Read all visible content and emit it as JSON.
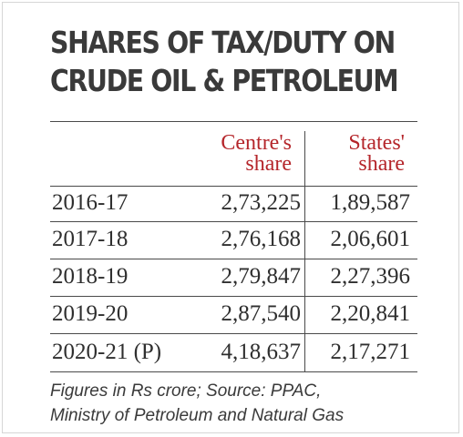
{
  "chart_data": {
    "type": "table",
    "title_lines": [
      "SHARES OF TAX/DUTY ON",
      "CRUDE OIL & PETROLEUM"
    ],
    "columns": [
      {
        "lines": [
          "Centre's",
          "share"
        ]
      },
      {
        "lines": [
          "States'",
          "share"
        ]
      }
    ],
    "rows": [
      {
        "year": "2016-17",
        "centre": "2,73,225",
        "states": "1,89,587"
      },
      {
        "year": "2017-18",
        "centre": "2,76,168",
        "states": "2,06,601"
      },
      {
        "year": "2018-19",
        "centre": "2,79,847",
        "states": "2,27,396"
      },
      {
        "year": "2019-20",
        "centre": "2,87,540",
        "states": "2,20,841"
      },
      {
        "year": "2020-21 (P)",
        "centre": "4,18,637",
        "states": "2,17,271"
      }
    ],
    "footnote_lines": [
      "Figures in Rs crore;  Source: PPAC,",
      "Ministry of Petroleum and Natural Gas"
    ]
  },
  "colors": {
    "header_text": "#b5262b",
    "body_text": "#2f2f2f",
    "rule": "#4a4a4a"
  }
}
